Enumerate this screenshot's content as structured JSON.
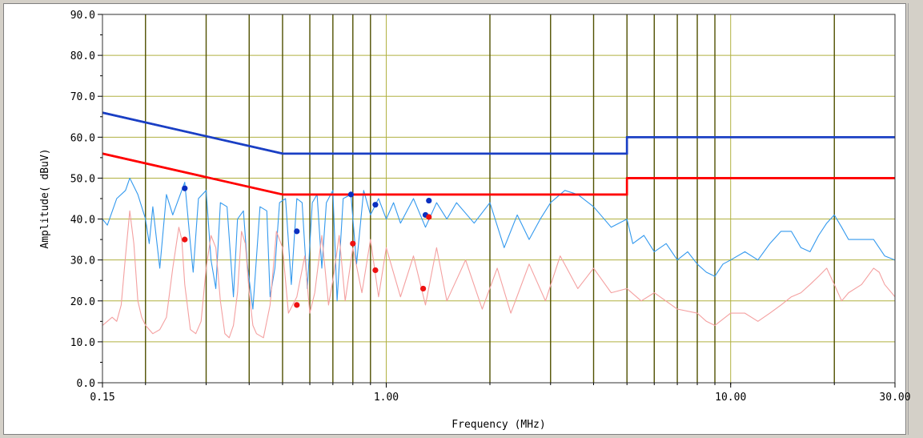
{
  "chart_data": {
    "type": "line",
    "xlabel": "Frequency (MHz)",
    "ylabel": "Amplitude( dBuV)",
    "xscale": "log",
    "xlim": [
      0.15,
      30
    ],
    "ylim": [
      0,
      90
    ],
    "x_tick_labels": [
      "0.15",
      "1.00",
      "10.00",
      "30.00"
    ],
    "x_tick_values": [
      0.15,
      1,
      10,
      30
    ],
    "y_tick_labels": [
      "0.0",
      "10.0",
      "20.0",
      "30.0",
      "40.0",
      "50.0",
      "60.0",
      "70.0",
      "80.0",
      "90.0"
    ],
    "y_tick_values": [
      0,
      10,
      20,
      30,
      40,
      50,
      60,
      70,
      80,
      90
    ],
    "grid": true,
    "colors": {
      "qp_limit": "#1a3fc4",
      "avg_limit": "#ff0000",
      "qp_trace": "#3399ee",
      "avg_trace": "#f4a0a0",
      "qp_points": "#0a2fc0",
      "avg_points": "#ee1111",
      "major_grid": "#505000",
      "minor_grid": "#b0b040"
    },
    "series": [
      {
        "kind": "limit",
        "color": "#1a3fc4",
        "points": [
          [
            0.15,
            66
          ],
          [
            0.5,
            56
          ],
          [
            0.5,
            56
          ],
          [
            5,
            56
          ],
          [
            5,
            60
          ],
          [
            30,
            60
          ]
        ]
      },
      {
        "kind": "limit",
        "color": "#ff0000",
        "points": [
          [
            0.15,
            56
          ],
          [
            0.5,
            46
          ],
          [
            5,
            46
          ],
          [
            5,
            50
          ],
          [
            30,
            50
          ]
        ]
      },
      {
        "kind": "trace",
        "color": "#3399ee",
        "points": [
          [
            0.15,
            40
          ],
          [
            0.155,
            38.5
          ],
          [
            0.165,
            45
          ],
          [
            0.175,
            47
          ],
          [
            0.18,
            50
          ],
          [
            0.19,
            46
          ],
          [
            0.2,
            40
          ],
          [
            0.205,
            34
          ],
          [
            0.21,
            43
          ],
          [
            0.22,
            28
          ],
          [
            0.23,
            46
          ],
          [
            0.24,
            41
          ],
          [
            0.26,
            49
          ],
          [
            0.27,
            34
          ],
          [
            0.275,
            27
          ],
          [
            0.285,
            45
          ],
          [
            0.3,
            47
          ],
          [
            0.31,
            30
          ],
          [
            0.32,
            23
          ],
          [
            0.33,
            44
          ],
          [
            0.345,
            43
          ],
          [
            0.36,
            21
          ],
          [
            0.37,
            40
          ],
          [
            0.385,
            42
          ],
          [
            0.395,
            29
          ],
          [
            0.41,
            18
          ],
          [
            0.43,
            43
          ],
          [
            0.45,
            42
          ],
          [
            0.46,
            21
          ],
          [
            0.475,
            28
          ],
          [
            0.49,
            44
          ],
          [
            0.51,
            45
          ],
          [
            0.53,
            24
          ],
          [
            0.55,
            45
          ],
          [
            0.57,
            44
          ],
          [
            0.59,
            23
          ],
          [
            0.61,
            44
          ],
          [
            0.63,
            46
          ],
          [
            0.65,
            28
          ],
          [
            0.67,
            44
          ],
          [
            0.7,
            47
          ],
          [
            0.72,
            20
          ],
          [
            0.75,
            45
          ],
          [
            0.79,
            46
          ],
          [
            0.82,
            29
          ],
          [
            0.86,
            47
          ],
          [
            0.9,
            41
          ],
          [
            0.95,
            45
          ],
          [
            1.0,
            40
          ],
          [
            1.05,
            44
          ],
          [
            1.1,
            39
          ],
          [
            1.2,
            45
          ],
          [
            1.3,
            38
          ],
          [
            1.4,
            44
          ],
          [
            1.5,
            40
          ],
          [
            1.6,
            44
          ],
          [
            1.8,
            39
          ],
          [
            2.0,
            44
          ],
          [
            2.2,
            33
          ],
          [
            2.4,
            41
          ],
          [
            2.6,
            35
          ],
          [
            2.8,
            40
          ],
          [
            3.0,
            44
          ],
          [
            3.3,
            47
          ],
          [
            3.6,
            46
          ],
          [
            4.0,
            43
          ],
          [
            4.5,
            38
          ],
          [
            5.0,
            40
          ],
          [
            5.2,
            34
          ],
          [
            5.6,
            36
          ],
          [
            6.0,
            32
          ],
          [
            6.5,
            34
          ],
          [
            7.0,
            30
          ],
          [
            7.5,
            32
          ],
          [
            8.0,
            29
          ],
          [
            8.5,
            27
          ],
          [
            9.0,
            26
          ],
          [
            9.5,
            29
          ],
          [
            10.0,
            30
          ],
          [
            11.0,
            32
          ],
          [
            12.0,
            30
          ],
          [
            13.0,
            34
          ],
          [
            14.0,
            37
          ],
          [
            15.0,
            37
          ],
          [
            16.0,
            33
          ],
          [
            17.0,
            32
          ],
          [
            18.0,
            36
          ],
          [
            19.0,
            39
          ],
          [
            20.0,
            41
          ],
          [
            21.0,
            38
          ],
          [
            22.0,
            35
          ],
          [
            24.0,
            35
          ],
          [
            26.0,
            35
          ],
          [
            28.0,
            31
          ],
          [
            30.0,
            30
          ]
        ]
      },
      {
        "kind": "trace",
        "color": "#f4a0a0",
        "points": [
          [
            0.15,
            14
          ],
          [
            0.155,
            15
          ],
          [
            0.16,
            16
          ],
          [
            0.165,
            15
          ],
          [
            0.17,
            19
          ],
          [
            0.175,
            31
          ],
          [
            0.18,
            42
          ],
          [
            0.185,
            34
          ],
          [
            0.19,
            20
          ],
          [
            0.195,
            16
          ],
          [
            0.2,
            14
          ],
          [
            0.21,
            12
          ],
          [
            0.22,
            13
          ],
          [
            0.23,
            16
          ],
          [
            0.24,
            28
          ],
          [
            0.25,
            38
          ],
          [
            0.255,
            35
          ],
          [
            0.26,
            24
          ],
          [
            0.27,
            13
          ],
          [
            0.28,
            12
          ],
          [
            0.29,
            15
          ],
          [
            0.3,
            28
          ],
          [
            0.31,
            36
          ],
          [
            0.32,
            33
          ],
          [
            0.33,
            20
          ],
          [
            0.34,
            12
          ],
          [
            0.35,
            11
          ],
          [
            0.36,
            14
          ],
          [
            0.37,
            22
          ],
          [
            0.38,
            37
          ],
          [
            0.39,
            34
          ],
          [
            0.4,
            22
          ],
          [
            0.41,
            14
          ],
          [
            0.42,
            12
          ],
          [
            0.44,
            11
          ],
          [
            0.46,
            19
          ],
          [
            0.48,
            37
          ],
          [
            0.5,
            33
          ],
          [
            0.52,
            17
          ],
          [
            0.55,
            21
          ],
          [
            0.58,
            31
          ],
          [
            0.6,
            17
          ],
          [
            0.62,
            22
          ],
          [
            0.65,
            36
          ],
          [
            0.68,
            19
          ],
          [
            0.7,
            25
          ],
          [
            0.73,
            36
          ],
          [
            0.76,
            20
          ],
          [
            0.8,
            33
          ],
          [
            0.85,
            22
          ],
          [
            0.9,
            35
          ],
          [
            0.95,
            21
          ],
          [
            1.0,
            33
          ],
          [
            1.1,
            21
          ],
          [
            1.2,
            31
          ],
          [
            1.3,
            19
          ],
          [
            1.4,
            33
          ],
          [
            1.5,
            20
          ],
          [
            1.7,
            30
          ],
          [
            1.9,
            18
          ],
          [
            2.1,
            28
          ],
          [
            2.3,
            17
          ],
          [
            2.6,
            29
          ],
          [
            2.9,
            20
          ],
          [
            3.2,
            31
          ],
          [
            3.6,
            23
          ],
          [
            4.0,
            28
          ],
          [
            4.5,
            22
          ],
          [
            5.0,
            23
          ],
          [
            5.5,
            20
          ],
          [
            6.0,
            22
          ],
          [
            7.0,
            18
          ],
          [
            8.0,
            17
          ],
          [
            8.5,
            15
          ],
          [
            9.0,
            14
          ],
          [
            10.0,
            17
          ],
          [
            11.0,
            17
          ],
          [
            12.0,
            15
          ],
          [
            13.0,
            17
          ],
          [
            14.0,
            19
          ],
          [
            15.0,
            21
          ],
          [
            16.0,
            22
          ],
          [
            17.0,
            24
          ],
          [
            18.0,
            26
          ],
          [
            19.0,
            28
          ],
          [
            20.0,
            24
          ],
          [
            21.0,
            20
          ],
          [
            22.0,
            22
          ],
          [
            24.0,
            24
          ],
          [
            26.0,
            28
          ],
          [
            27.0,
            27
          ],
          [
            28.0,
            24
          ],
          [
            30.0,
            21
          ]
        ]
      }
    ],
    "qp_points": [
      [
        0.26,
        47.5
      ],
      [
        0.55,
        37
      ],
      [
        0.79,
        46
      ],
      [
        0.93,
        43.5
      ],
      [
        1.3,
        41
      ],
      [
        1.33,
        44.5
      ]
    ],
    "avg_points": [
      [
        0.26,
        35
      ],
      [
        0.55,
        19
      ],
      [
        0.8,
        34
      ],
      [
        0.93,
        27.5
      ],
      [
        1.28,
        23
      ],
      [
        1.33,
        40.5
      ]
    ]
  }
}
